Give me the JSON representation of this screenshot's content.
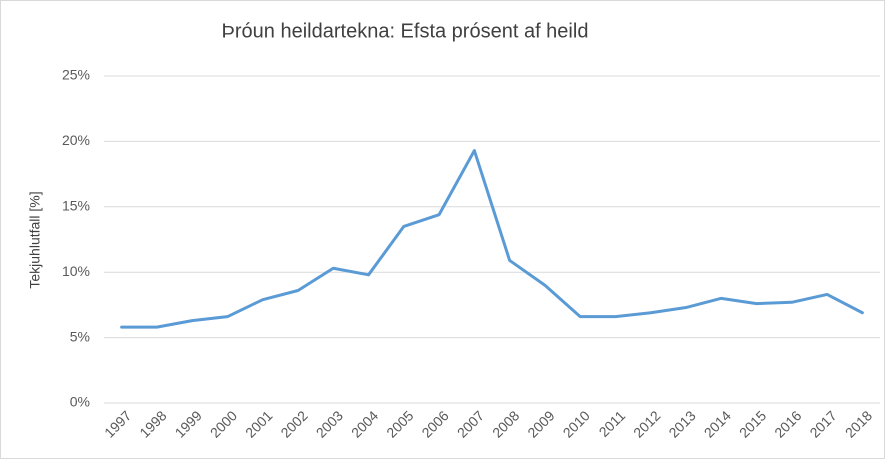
{
  "chart_data": {
    "type": "line",
    "title": "Þróun heildartekna: Efsta prósent af heild",
    "y_label": "Tekjuhlutfall [%]",
    "categories": [
      "1997",
      "1998",
      "1999",
      "2000",
      "2001",
      "2002",
      "2003",
      "2004",
      "2005",
      "2006",
      "2007",
      "2008",
      "2009",
      "2010",
      "2011",
      "2012",
      "2013",
      "2014",
      "2015",
      "2016",
      "2017",
      "2018"
    ],
    "values": [
      5.8,
      5.8,
      6.3,
      6.6,
      7.9,
      8.6,
      10.3,
      9.8,
      13.5,
      14.4,
      19.3,
      10.9,
      9.0,
      6.6,
      6.6,
      6.9,
      7.3,
      8.0,
      7.6,
      7.7,
      8.3,
      6.9
    ],
    "color": "#5b9bd5",
    "ylim": [
      0,
      25
    ],
    "yticks": [
      {
        "value": 0,
        "label": "0%"
      },
      {
        "value": 5,
        "label": "5%"
      },
      {
        "value": 10,
        "label": "10%"
      },
      {
        "value": 15,
        "label": "15%"
      },
      {
        "value": 20,
        "label": "20%"
      },
      {
        "value": 25,
        "label": "25%"
      }
    ],
    "grid": true
  }
}
